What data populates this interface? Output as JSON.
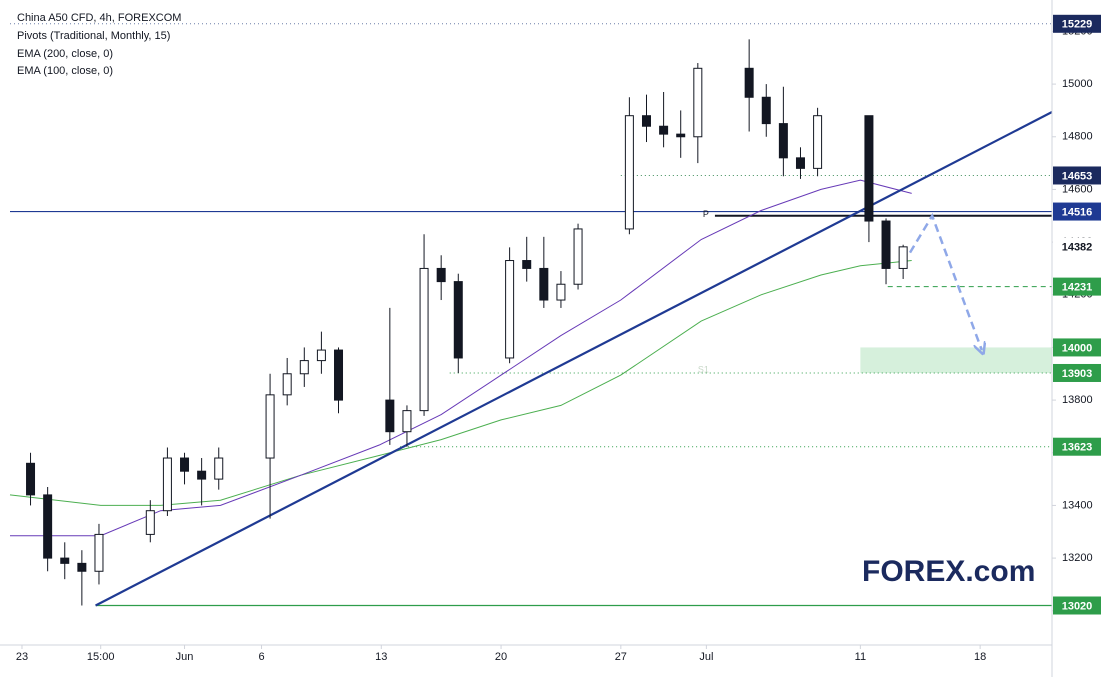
{
  "chart_data": {
    "type": "candlestick",
    "legend_lines": [
      "China A50 CFD, 4h, FOREXCOM",
      "Pivots (Traditional, Monthly, 15)",
      "EMA (200, close, 0)",
      "EMA (100, close, 0)"
    ],
    "logo": "FOREX.com",
    "xlim": [
      -0.7,
      60.2
    ],
    "ylim": [
      12870,
      15289
    ],
    "xticks": [
      {
        "value": 0,
        "label": "23"
      },
      {
        "value": 4.6,
        "label": "15:00"
      },
      {
        "value": 9.5,
        "label": "Jun"
      },
      {
        "value": 14,
        "label": "6"
      },
      {
        "value": 21,
        "label": "13"
      },
      {
        "value": 28,
        "label": "20"
      },
      {
        "value": 35,
        "label": "27"
      },
      {
        "value": 40,
        "label": "Jul"
      },
      {
        "value": 49,
        "label": "11"
      },
      {
        "value": 56,
        "label": "18"
      }
    ],
    "yticks": [
      13000,
      13200,
      13400,
      13600,
      13800,
      14000,
      14200,
      14400,
      14600,
      14800,
      15000,
      15200
    ],
    "grid": false,
    "up_color": "#ffffff",
    "down_color": "#131722",
    "candles": {
      "x": [
        0.5,
        1.5,
        2.5,
        3.5,
        4.5,
        7.5,
        8.5,
        9.5,
        10.5,
        11.5,
        14.5,
        15.5,
        16.5,
        17.5,
        18.5,
        21.5,
        22.5,
        23.5,
        24.5,
        25.5,
        28.5,
        29.5,
        30.5,
        31.5,
        32.5,
        35.5,
        36.5,
        37.5,
        38.5,
        39.5,
        42.5,
        43.5,
        44.5,
        45.5,
        46.5,
        49.5,
        50.5,
        51.5
      ],
      "open": [
        13560,
        13440,
        13200,
        13180,
        13150,
        13290,
        13380,
        13580,
        13530,
        13500,
        13580,
        13820,
        13900,
        13950,
        13990,
        13800,
        13680,
        13760,
        14300,
        14250,
        13960,
        14330,
        14300,
        14180,
        14240,
        14450,
        14880,
        14840,
        14810,
        14800,
        15060,
        14950,
        14850,
        14720,
        14680,
        14880,
        14480,
        14300
      ],
      "high": [
        13600,
        13470,
        13260,
        13230,
        13330,
        13420,
        13620,
        13600,
        13580,
        13620,
        13900,
        13960,
        14000,
        14060,
        14000,
        14150,
        13780,
        14430,
        14350,
        14280,
        14380,
        14420,
        14420,
        14290,
        14470,
        14950,
        14960,
        14970,
        14900,
        15080,
        15170,
        15000,
        14990,
        14760,
        14910,
        14880,
        14490,
        14390
      ],
      "low": [
        13400,
        13150,
        13120,
        13020,
        13100,
        13260,
        13360,
        13480,
        13400,
        13460,
        13350,
        13780,
        13850,
        13900,
        13750,
        13630,
        13623,
        13740,
        14180,
        13903,
        13940,
        14250,
        14150,
        14150,
        14220,
        14430,
        14780,
        14760,
        14720,
        14700,
        14820,
        14800,
        14650,
        14640,
        14650,
        14400,
        14240,
        14260
      ],
      "close": [
        13440,
        13200,
        13180,
        13150,
        13290,
        13380,
        13580,
        13530,
        13500,
        13580,
        13820,
        13900,
        13950,
        13990,
        13800,
        13680,
        13760,
        14300,
        14250,
        13960,
        14330,
        14300,
        14180,
        14240,
        14450,
        14880,
        14840,
        14810,
        14800,
        15060,
        14950,
        14850,
        14720,
        14680,
        14880,
        14480,
        14300,
        14382
      ]
    },
    "overlays": [
      {
        "color": "#4caf50",
        "x": [
          -0.7,
          4.6,
          8.1,
          11.6,
          16.3,
          20.9,
          24.5,
          28.0,
          31.5,
          35.0,
          39.7,
          43.2,
          46.7,
          49.0,
          52.0
        ],
        "values": [
          13440,
          13400,
          13400,
          13420,
          13515,
          13590,
          13650,
          13725,
          13780,
          13895,
          14100,
          14200,
          14275,
          14310,
          14330
        ]
      },
      {
        "color": "#673ab7",
        "x": [
          -0.7,
          4.6,
          8.1,
          11.6,
          16.3,
          20.9,
          24.5,
          28.0,
          31.5,
          35.0,
          39.7,
          43.2,
          46.7,
          49.0,
          52.0
        ],
        "values": [
          13285,
          13285,
          13380,
          13400,
          13515,
          13630,
          13745,
          13895,
          14045,
          14180,
          14410,
          14520,
          14600,
          14635,
          14585
        ]
      }
    ],
    "trendline": {
      "color": "#1f3a93",
      "x": [
        4.3,
        60.2
      ],
      "values": [
        13020,
        14894
      ]
    },
    "projection": {
      "color": "#8fa8e8",
      "x": [
        51.9,
        53.2,
        56.1
      ],
      "values": [
        14360,
        14500,
        13990
      ]
    },
    "zone": {
      "from": 49.0,
      "values": [
        13903,
        14000
      ],
      "color": "#d6f0dc"
    },
    "pivots": [
      {
        "label": "P",
        "value": 14500,
        "from": 40.5,
        "color": "#131722"
      },
      {
        "label": "S1",
        "value": 13910,
        "from": 40.5,
        "color": "#c8d8c8"
      }
    ],
    "levels": [
      {
        "value": 15229,
        "from": -0.7,
        "style": "dotted",
        "color": "#6b7fa8",
        "label_color": "#1b2a5e"
      },
      {
        "value": 14653,
        "from": 35.0,
        "style": "dotted",
        "color": "#3c8c5a",
        "label_color": "#1b2a5e"
      },
      {
        "value": 14516,
        "from": -0.7,
        "style": "solid",
        "color": "#1f3a93",
        "label_color": "#1f3a93"
      },
      {
        "value": 14382,
        "from": null,
        "style": "none",
        "color": "#131722",
        "label_color": "#ffffff"
      },
      {
        "value": 14231,
        "from": 50.6,
        "style": "dashed",
        "color": "#2e9d4a",
        "label_color": "#2e9d4a"
      },
      {
        "value": 14000,
        "from": null,
        "style": "none",
        "color": "#2e9d4a",
        "label_color": "#2e9d4a"
      },
      {
        "value": 13903,
        "from": 25.0,
        "style": "dotted",
        "color": "#2e9d4a",
        "label_color": "#2e9d4a"
      },
      {
        "value": 13623,
        "from": 22.1,
        "style": "dotted",
        "color": "#2e9d4a",
        "label_color": "#2e9d4a"
      },
      {
        "value": 13020,
        "from": 4.3,
        "style": "solid",
        "color": "#2e9d4a",
        "label_color": "#2e9d4a"
      }
    ]
  }
}
